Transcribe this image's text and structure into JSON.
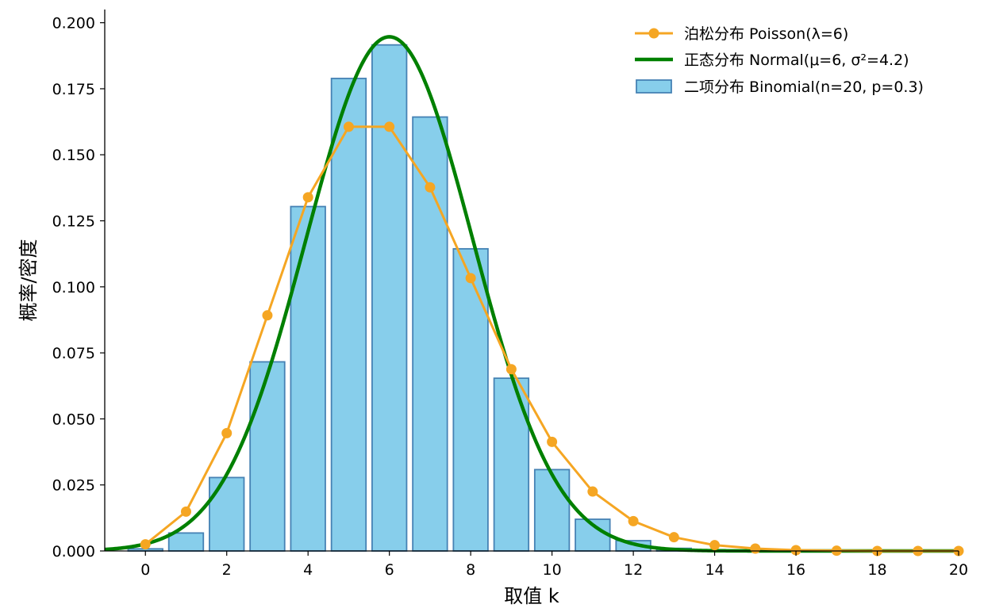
{
  "chart_data": {
    "type": "bar",
    "xlabel": "取值 k",
    "ylabel": "概率/密度",
    "xlim": [
      -1,
      20
    ],
    "ylim": [
      0,
      0.205
    ],
    "x_ticks": [
      0,
      2,
      4,
      6,
      8,
      10,
      12,
      14,
      16,
      18,
      20
    ],
    "y_ticks": [
      0.0,
      0.025,
      0.05,
      0.075,
      0.1,
      0.125,
      0.15,
      0.175,
      0.2
    ],
    "y_tick_labels": [
      "0.000",
      "0.025",
      "0.050",
      "0.075",
      "0.100",
      "0.125",
      "0.150",
      "0.175",
      "0.200"
    ],
    "grid": false,
    "legend_position": "top-right",
    "series": [
      {
        "name": "二项分布 Binomial(n=20, p=0.3)",
        "kind": "bar",
        "color": "#87CEEB",
        "edge_color": "#4682B4",
        "x": [
          0,
          1,
          2,
          3,
          4,
          5,
          6,
          7,
          8,
          9,
          10,
          11,
          12,
          13,
          14,
          15,
          16,
          17,
          18,
          19,
          20
        ],
        "values": [
          0.0008,
          0.0068,
          0.0278,
          0.0716,
          0.1304,
          0.1789,
          0.1916,
          0.1643,
          0.1144,
          0.0654,
          0.0308,
          0.012,
          0.0039,
          0.001,
          0.0002,
          0.0,
          0.0,
          0.0,
          0.0,
          0.0,
          0.0
        ]
      },
      {
        "name": "泊松分布 Poisson(λ=6)",
        "kind": "line-marker",
        "color": "#F5A623",
        "x": [
          0,
          1,
          2,
          3,
          4,
          5,
          6,
          7,
          8,
          9,
          10,
          11,
          12,
          13,
          14,
          15,
          16,
          17,
          18,
          19,
          20
        ],
        "values": [
          0.0025,
          0.0149,
          0.0446,
          0.0892,
          0.1339,
          0.1606,
          0.1606,
          0.1377,
          0.1033,
          0.0688,
          0.0413,
          0.0225,
          0.0113,
          0.0052,
          0.0022,
          0.0009,
          0.0003,
          0.0001,
          0.0,
          0.0,
          0.0
        ]
      },
      {
        "name": "正态分布 Normal(μ=6, σ²=4.2)",
        "kind": "line",
        "color": "#008000",
        "mu": 6,
        "variance": 4.2
      }
    ]
  }
}
